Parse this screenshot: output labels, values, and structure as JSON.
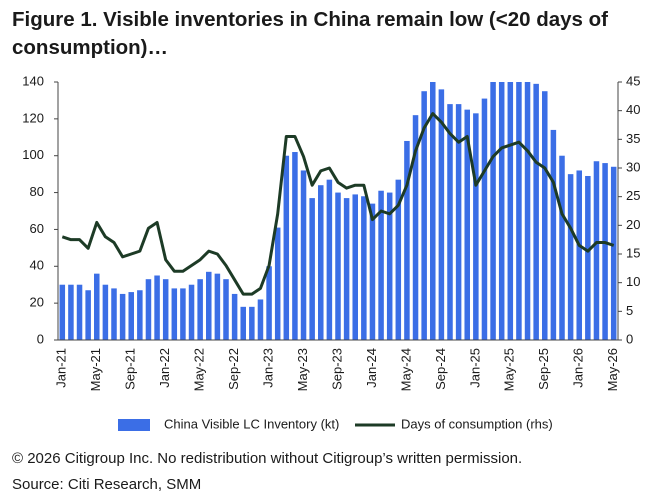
{
  "chart_data": {
    "type": "bar",
    "title": "Figure 1. Visible inventories in China remain low (<20 days of consumption)…",
    "categories": [
      "Jan-21",
      null,
      null,
      null,
      "May-21",
      null,
      null,
      null,
      "Sep-21",
      null,
      null,
      null,
      "Jan-22",
      null,
      null,
      null,
      "May-22",
      null,
      null,
      null,
      "Sep-22",
      null,
      null,
      null,
      "Jan-23",
      null,
      null,
      null,
      "May-23",
      null,
      null,
      null,
      "Sep-23",
      null,
      null,
      null,
      "Jan-24",
      null,
      null,
      null,
      "May-24",
      null,
      null,
      null,
      "Sep-24",
      null,
      null,
      null,
      "Jan-25",
      null,
      null,
      null,
      "May-25",
      null,
      null,
      null,
      "Sep-25",
      null,
      null,
      null,
      "Jan-26",
      null,
      null,
      null,
      "May-26"
    ],
    "series": [
      {
        "name": "China Visible LC Inventory (kt)",
        "type": "bar",
        "color": "#3b6ee6",
        "values": [
          30,
          30,
          30,
          27,
          36,
          30,
          28,
          25,
          26,
          27,
          33,
          35,
          33,
          28,
          28,
          30,
          33,
          37,
          36,
          33,
          25,
          18,
          18,
          22,
          40,
          61,
          100,
          102,
          92,
          77,
          84,
          87,
          80,
          77,
          79,
          78,
          74,
          81,
          80,
          87,
          108,
          122,
          135,
          140,
          136,
          128,
          128,
          125,
          123,
          131,
          140,
          140,
          140,
          140,
          140,
          139,
          135,
          114,
          100,
          90,
          92,
          89,
          97,
          96,
          94
        ]
      },
      {
        "name": "Days of consumption (rhs)",
        "type": "line",
        "axis": "y2",
        "color": "#1d3b26",
        "values": [
          18,
          17.5,
          17.5,
          16,
          20.5,
          18,
          17,
          14.5,
          15,
          15.5,
          19.5,
          20.5,
          14,
          12,
          12,
          13,
          14,
          15.5,
          15,
          13,
          10.5,
          8,
          8,
          9,
          13,
          22,
          35.5,
          35.5,
          32,
          27,
          29.5,
          30,
          27.5,
          26.5,
          27,
          27,
          21,
          22.5,
          22,
          23.5,
          27,
          33,
          37,
          39.5,
          38,
          36,
          34.5,
          35.5,
          27,
          29.5,
          32,
          33.5,
          34,
          34.5,
          33,
          31,
          30,
          27.5,
          22,
          19.5,
          16.5,
          15.5,
          17,
          17,
          16.5
        ]
      }
    ],
    "ylim": [
      0,
      140
    ],
    "yticks": [
      0,
      20,
      40,
      60,
      80,
      100,
      120,
      140
    ],
    "y2lim": [
      0,
      45
    ],
    "y2ticks": [
      0,
      5,
      10,
      15,
      20,
      25,
      30,
      35,
      40,
      45
    ],
    "copyright": "© 2026 Citigroup Inc. No redistribution without Citigroup’s written permission.",
    "source": "Source: Citi Research, SMM"
  }
}
